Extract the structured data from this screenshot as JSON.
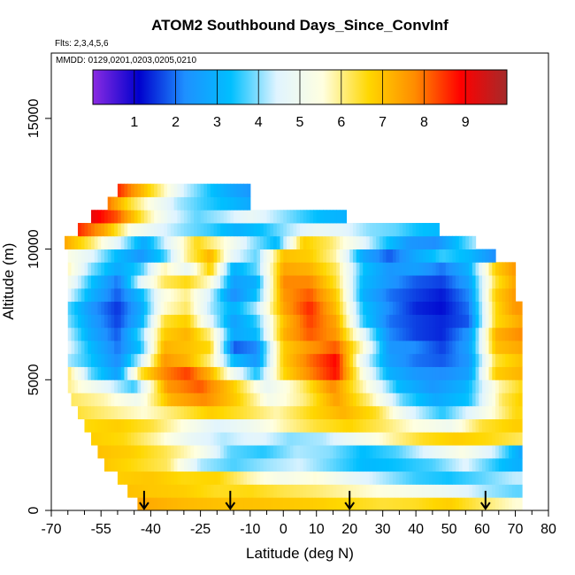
{
  "chart_data": {
    "type": "heatmap",
    "title": "ATOM2 Southbound Days_Since_ConvInf",
    "flights_label": "Flts: 2,3,4,5,6",
    "dates_label": "MMDD: 0129,0201,0203,0205,0210",
    "xlabel": "Latitude (deg N)",
    "ylabel": "Altitude (m)",
    "xlim": [
      -70,
      80
    ],
    "ylim": [
      0,
      17500
    ],
    "x_ticks_labeled": [
      -70,
      -55,
      -40,
      -25,
      -10,
      0,
      10,
      20,
      30,
      40,
      50,
      60,
      70,
      80
    ],
    "y_ticks_labeled": [
      0,
      5000,
      10000,
      15000
    ],
    "colorbar": {
      "range": [
        0,
        10
      ],
      "tick_labels": [
        1,
        2,
        3,
        4,
        5,
        6,
        7,
        8,
        9
      ],
      "colors": [
        "#8a2be2",
        "#0000cd",
        "#1e90ff",
        "#00bfff",
        "#e0f4ff",
        "#ffffe0",
        "#ffd700",
        "#ff8c00",
        "#ff0000",
        "#a52a2a"
      ]
    },
    "arrows_at_latitude": [
      -42,
      -16,
      20,
      61
    ],
    "bands": [
      {
        "alt": [
          0,
          500
        ],
        "lat": [
          -44,
          72
        ],
        "x": [
          -44,
          -40,
          -30,
          -20,
          -10,
          0,
          10,
          20,
          30,
          40,
          50,
          60,
          70
        ],
        "v": [
          7.4,
          7.3,
          7.1,
          7.0,
          7.0,
          6.9,
          6.8,
          6.6,
          6.4,
          6.5,
          6.8,
          6.2,
          5.6
        ]
      },
      {
        "alt": [
          500,
          1000
        ],
        "lat": [
          -47,
          72
        ],
        "x": [
          -47,
          -40,
          -30,
          -20,
          -10,
          0,
          10,
          20,
          30,
          40,
          50,
          60,
          70
        ],
        "v": [
          7.0,
          6.9,
          6.8,
          6.5,
          6.6,
          6.3,
          6.1,
          5.8,
          5.5,
          5.2,
          4.8,
          4.2,
          3.8
        ]
      },
      {
        "alt": [
          1000,
          1500
        ],
        "lat": [
          -50,
          72
        ],
        "x": [
          -50,
          -40,
          -30,
          -20,
          -10,
          0,
          10,
          20,
          30,
          40,
          50,
          60,
          70
        ],
        "v": [
          6.8,
          6.9,
          6.6,
          6.7,
          5.8,
          5.2,
          5.6,
          4.8,
          4.2,
          3.6,
          3.4,
          3.8,
          4.3
        ]
      },
      {
        "alt": [
          1500,
          2000
        ],
        "lat": [
          -54,
          72
        ],
        "x": [
          -54,
          -45,
          -35,
          -25,
          -15,
          -5,
          5,
          15,
          25,
          35,
          45,
          55,
          65,
          70
        ],
        "v": [
          6.9,
          6.6,
          6.2,
          4.2,
          3.7,
          4.1,
          4.4,
          3.8,
          3.2,
          3.4,
          3.7,
          4.5,
          3.4,
          3.0
        ]
      },
      {
        "alt": [
          2000,
          2500
        ],
        "lat": [
          -56,
          72
        ],
        "x": [
          -56,
          -46,
          -36,
          -26,
          -16,
          -6,
          4,
          14,
          24,
          34,
          44,
          54,
          64,
          72
        ],
        "v": [
          7.0,
          6.8,
          6.3,
          5.5,
          3.8,
          3.5,
          4.2,
          4.0,
          3.3,
          3.7,
          4.6,
          5.4,
          4.3,
          2.7
        ]
      },
      {
        "alt": [
          2500,
          3000
        ],
        "lat": [
          -58,
          72
        ],
        "x": [
          -58,
          -48,
          -38,
          -28,
          -18,
          -8,
          2,
          12,
          22,
          32,
          42,
          52,
          62,
          72
        ],
        "v": [
          6.8,
          6.6,
          5.8,
          4.8,
          4.2,
          4.6,
          4.0,
          4.2,
          5.0,
          5.8,
          6.5,
          6.8,
          6.6,
          6.2
        ]
      },
      {
        "alt": [
          3000,
          3500
        ],
        "lat": [
          -60,
          72
        ],
        "x": [
          -60,
          -50,
          -40,
          -30,
          -20,
          -10,
          0,
          10,
          20,
          30,
          40,
          50,
          60,
          70
        ],
        "v": [
          6.6,
          6.8,
          6.4,
          5.5,
          4.5,
          5.0,
          5.8,
          6.4,
          6.7,
          6.2,
          5.5,
          5.0,
          6.4,
          6.8
        ]
      },
      {
        "alt": [
          3500,
          4000
        ],
        "lat": [
          -62,
          72
        ],
        "x": [
          -62,
          -52,
          -42,
          -32,
          -22,
          -12,
          -2,
          8,
          18,
          28,
          38,
          48,
          58,
          70
        ],
        "v": [
          6.4,
          6.0,
          5.6,
          6.2,
          6.8,
          6.4,
          5.8,
          6.6,
          7.2,
          6.5,
          4.6,
          3.5,
          4.8,
          6.6
        ]
      },
      {
        "alt": [
          4000,
          4500
        ],
        "lat": [
          -64,
          72
        ],
        "x": [
          -64,
          -54,
          -44,
          -34,
          -24,
          -14,
          -4,
          6,
          16,
          26,
          36,
          46,
          56,
          66,
          72
        ],
        "v": [
          6.2,
          5.8,
          5.0,
          7.2,
          7.8,
          6.8,
          5.2,
          6.0,
          7.5,
          6.0,
          3.8,
          2.8,
          3.4,
          6.2,
          6.8
        ]
      },
      {
        "alt": [
          4500,
          5000
        ],
        "lat": [
          -65,
          72
        ],
        "x": [
          -65,
          -55,
          -45,
          -35,
          -25,
          -15,
          -5,
          5,
          15,
          25,
          35,
          45,
          55,
          65,
          72
        ],
        "v": [
          6.0,
          4.8,
          3.6,
          7.6,
          8.2,
          6.8,
          4.8,
          6.0,
          7.8,
          5.6,
          3.2,
          2.4,
          3.0,
          5.8,
          6.6
        ]
      },
      {
        "alt": [
          5000,
          5500
        ],
        "lat": [
          -65,
          72
        ],
        "x": [
          -65,
          -58,
          -50,
          -43,
          -36,
          -29,
          -22,
          -15,
          -8,
          0,
          8,
          16,
          24,
          32,
          40,
          48,
          56,
          64,
          72
        ],
        "v": [
          6.2,
          3.8,
          2.6,
          6.4,
          7.8,
          8.4,
          7.2,
          5.0,
          3.4,
          6.6,
          7.8,
          8.8,
          5.4,
          3.0,
          2.4,
          2.2,
          2.6,
          6.8,
          7.2
        ]
      },
      {
        "alt": [
          5500,
          6000
        ],
        "lat": [
          -65,
          72
        ],
        "x": [
          -65,
          -58,
          -50,
          -43,
          -36,
          -29,
          -22,
          -15,
          -8,
          0,
          8,
          16,
          24,
          32,
          40,
          48,
          56,
          64,
          72
        ],
        "v": [
          4.2,
          3.4,
          2.2,
          4.4,
          7.6,
          7.2,
          6.0,
          3.2,
          2.4,
          6.8,
          8.0,
          8.9,
          4.8,
          2.6,
          2.0,
          1.8,
          2.4,
          6.4,
          7.0
        ]
      },
      {
        "alt": [
          6000,
          6500
        ],
        "lat": [
          -65,
          72
        ],
        "x": [
          -65,
          -58,
          -50,
          -43,
          -36,
          -29,
          -22,
          -15,
          -8,
          0,
          8,
          16,
          24,
          32,
          40,
          48,
          56,
          64,
          72
        ],
        "v": [
          4.6,
          3.2,
          2.0,
          3.4,
          7.2,
          7.0,
          6.6,
          1.8,
          2.2,
          6.8,
          7.6,
          8.2,
          5.6,
          2.4,
          2.2,
          1.6,
          2.6,
          7.0,
          7.4
        ]
      },
      {
        "alt": [
          6500,
          7000
        ],
        "lat": [
          -65,
          72
        ],
        "x": [
          -65,
          -58,
          -50,
          -43,
          -36,
          -29,
          -22,
          -15,
          -8,
          0,
          8,
          16,
          24,
          32,
          40,
          48,
          56,
          64,
          72
        ],
        "v": [
          4.4,
          2.8,
          1.8,
          3.8,
          6.8,
          7.2,
          6.0,
          2.8,
          3.2,
          7.2,
          8.2,
          7.6,
          4.8,
          2.2,
          1.6,
          1.4,
          2.4,
          7.2,
          7.8
        ]
      },
      {
        "alt": [
          7000,
          7500
        ],
        "lat": [
          -65,
          72
        ],
        "x": [
          -65,
          -58,
          -50,
          -43,
          -36,
          -29,
          -22,
          -15,
          -8,
          0,
          8,
          16,
          24,
          32,
          40,
          48,
          56,
          64,
          72
        ],
        "v": [
          4.0,
          2.6,
          1.6,
          3.0,
          6.4,
          6.8,
          4.6,
          2.6,
          3.6,
          7.0,
          8.4,
          7.4,
          3.6,
          2.0,
          1.6,
          1.4,
          1.8,
          6.6,
          7.4
        ]
      },
      {
        "alt": [
          7500,
          8000
        ],
        "lat": [
          -65,
          72
        ],
        "x": [
          -65,
          -58,
          -50,
          -43,
          -36,
          -29,
          -22,
          -15,
          -8,
          0,
          8,
          16,
          24,
          32,
          40,
          48,
          56,
          64,
          70
        ],
        "v": [
          3.8,
          2.4,
          1.5,
          2.8,
          5.6,
          6.2,
          4.2,
          3.0,
          4.2,
          7.4,
          8.6,
          7.0,
          3.4,
          2.2,
          1.4,
          1.2,
          2.0,
          6.6,
          7.6
        ]
      },
      {
        "alt": [
          8000,
          8500
        ],
        "lat": [
          -65,
          70
        ],
        "x": [
          -65,
          -58,
          -50,
          -43,
          -36,
          -29,
          -22,
          -15,
          -8,
          0,
          8,
          16,
          24,
          32,
          40,
          48,
          56,
          64,
          70
        ],
        "v": [
          4.6,
          3.0,
          1.8,
          3.2,
          5.4,
          6.0,
          4.4,
          2.2,
          3.4,
          7.6,
          8.2,
          6.8,
          3.0,
          2.0,
          1.6,
          1.3,
          2.2,
          6.8,
          7.6
        ]
      },
      {
        "alt": [
          8500,
          9000
        ],
        "lat": [
          -65,
          70
        ],
        "x": [
          -65,
          -58,
          -50,
          -43,
          -36,
          -29,
          -22,
          -15,
          -8,
          0,
          8,
          16,
          24,
          32,
          40,
          48,
          56,
          64,
          70
        ],
        "v": [
          5.2,
          3.4,
          2.0,
          4.6,
          6.2,
          6.6,
          5.6,
          2.6,
          3.0,
          7.8,
          7.8,
          6.4,
          3.2,
          2.4,
          1.8,
          1.6,
          2.6,
          6.4,
          7.4
        ]
      },
      {
        "alt": [
          9000,
          9500
        ],
        "lat": [
          -65,
          70
        ],
        "x": [
          -65,
          -58,
          -50,
          -43,
          -36,
          -29,
          -22,
          -15,
          -8,
          0,
          8,
          16,
          24,
          32,
          40,
          48,
          56,
          64,
          70
        ],
        "v": [
          5.8,
          4.0,
          2.8,
          3.6,
          5.8,
          4.8,
          6.8,
          3.0,
          3.8,
          7.4,
          7.2,
          6.2,
          3.4,
          2.4,
          2.6,
          2.0,
          3.0,
          6.8,
          7.6
        ]
      },
      {
        "alt": [
          9500,
          10000
        ],
        "lat": [
          -65,
          64
        ],
        "x": [
          -65,
          -58,
          -50,
          -43,
          -36,
          -29,
          -22,
          -15,
          -8,
          0,
          8,
          16,
          24,
          32,
          40,
          48,
          56,
          64
        ],
        "v": [
          5.4,
          4.6,
          3.2,
          2.4,
          3.6,
          6.0,
          7.2,
          4.6,
          3.8,
          7.0,
          6.8,
          5.8,
          2.8,
          1.8,
          2.8,
          3.6,
          3.2,
          2.2
        ]
      },
      {
        "alt": [
          10000,
          10500
        ],
        "lat": [
          -66,
          58
        ],
        "x": [
          -66,
          -58,
          -50,
          -42,
          -34,
          -26,
          -18,
          -10,
          -2,
          6,
          14,
          22,
          30,
          38,
          46,
          52,
          58
        ],
        "v": [
          7.4,
          6.2,
          4.6,
          2.8,
          4.8,
          6.6,
          5.6,
          4.2,
          3.2,
          6.8,
          6.2,
          5.0,
          3.6,
          2.4,
          2.2,
          3.2,
          4.2
        ]
      },
      {
        "alt": [
          10500,
          11000
        ],
        "lat": [
          -62,
          47
        ],
        "x": [
          -62,
          -54,
          -46,
          -38,
          -30,
          -22,
          -14,
          -6,
          2,
          10,
          18,
          26,
          34,
          40,
          47
        ],
        "v": [
          8.6,
          7.4,
          5.4,
          4.6,
          4.0,
          3.6,
          3.0,
          3.4,
          4.2,
          4.8,
          4.6,
          4.0,
          3.8,
          3.4,
          3.2
        ]
      },
      {
        "alt": [
          11000,
          11500
        ],
        "lat": [
          -58,
          19
        ],
        "x": [
          -58,
          -50,
          -42,
          -34,
          -26,
          -18,
          -10,
          -2,
          6,
          12,
          19
        ],
        "v": [
          9.2,
          8.2,
          6.2,
          4.6,
          3.8,
          4.2,
          4.8,
          4.2,
          3.6,
          3.2,
          3.0
        ]
      },
      {
        "alt": [
          11500,
          12000
        ],
        "lat": [
          -53,
          -10
        ],
        "x": [
          -53,
          -47,
          -40,
          -32,
          -24,
          -16,
          -10
        ],
        "v": [
          8.0,
          6.6,
          5.4,
          4.2,
          3.6,
          3.2,
          2.8
        ]
      },
      {
        "alt": [
          12000,
          12500
        ],
        "lat": [
          -50,
          -10
        ],
        "x": [
          -50,
          -44,
          -37,
          -30,
          -22,
          -16,
          -10
        ],
        "v": [
          8.6,
          7.4,
          6.0,
          4.4,
          3.4,
          2.8,
          2.4
        ]
      }
    ]
  }
}
